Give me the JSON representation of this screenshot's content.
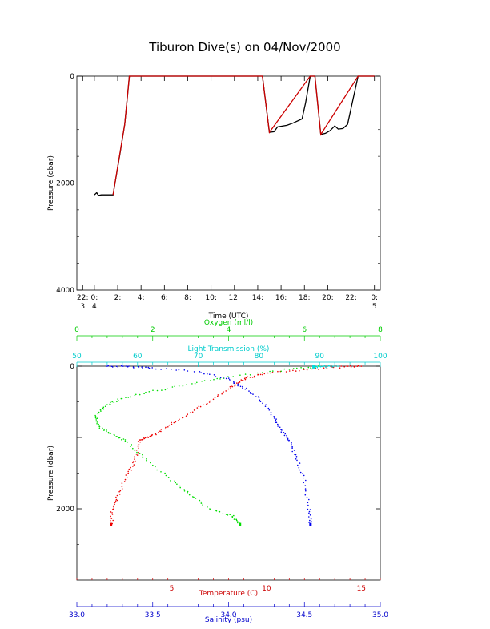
{
  "title": "Tiburon Dive(s) on 04/Nov/2000",
  "chart_data": [
    {
      "type": "line",
      "ylabel": "Pressure (dbar)",
      "xlabel": "Time (UTC)",
      "ylim": [
        4000,
        0
      ],
      "xlim": [
        -1.5,
        24.5
      ],
      "x_unit": "hours from 00:00 UTC on day 4 (negative = day 3)",
      "yticks": [
        0,
        2000,
        4000
      ],
      "xticks": [
        {
          "x": -1.0,
          "l1": "22:",
          "l2": "3"
        },
        {
          "x": 0.0,
          "l1": "0:",
          "l2": "4"
        },
        {
          "x": 2.0,
          "l1": "2:",
          "l2": ""
        },
        {
          "x": 4.0,
          "l1": "4:",
          "l2": ""
        },
        {
          "x": 6.0,
          "l1": "6:",
          "l2": ""
        },
        {
          "x": 8.0,
          "l1": "8:",
          "l2": ""
        },
        {
          "x": 10.0,
          "l1": "10:",
          "l2": ""
        },
        {
          "x": 12.0,
          "l1": "12:",
          "l2": ""
        },
        {
          "x": 14.0,
          "l1": "14:",
          "l2": ""
        },
        {
          "x": 16.0,
          "l1": "16:",
          "l2": ""
        },
        {
          "x": 18.0,
          "l1": "18:",
          "l2": ""
        },
        {
          "x": 20.0,
          "l1": "20:",
          "l2": ""
        },
        {
          "x": 22.0,
          "l1": "22:",
          "l2": ""
        },
        {
          "x": 24.0,
          "l1": "0:",
          "l2": "5"
        }
      ],
      "series": [
        {
          "color": "#000000",
          "points": [
            [
              0.0,
              2220
            ],
            [
              0.2,
              2180
            ],
            [
              0.35,
              2230
            ],
            [
              0.6,
              2220
            ],
            [
              1.0,
              2220
            ],
            [
              1.6,
              2220
            ],
            [
              2.2,
              1450
            ],
            [
              2.6,
              900
            ],
            [
              3.0,
              0
            ],
            [
              14.4,
              0
            ],
            [
              15.0,
              1050
            ],
            [
              15.4,
              1040
            ],
            [
              15.7,
              950
            ],
            [
              16.5,
              920
            ],
            [
              17.0,
              880
            ],
            [
              17.8,
              800
            ],
            [
              18.1,
              500
            ],
            [
              18.5,
              0
            ],
            [
              18.9,
              0
            ],
            [
              19.4,
              1090
            ],
            [
              19.8,
              1070
            ],
            [
              20.2,
              1020
            ],
            [
              20.6,
              930
            ],
            [
              20.9,
              990
            ],
            [
              21.3,
              980
            ],
            [
              21.7,
              900
            ],
            [
              22.1,
              500
            ],
            [
              22.6,
              0
            ],
            [
              24.0,
              0
            ]
          ]
        },
        {
          "color": "#cc0000",
          "points": [
            [
              1.6,
              2220
            ],
            [
              2.6,
              900
            ],
            [
              3.0,
              0
            ],
            [
              14.4,
              0
            ],
            [
              15.0,
              1050
            ],
            [
              18.5,
              0
            ],
            [
              18.9,
              0
            ],
            [
              19.4,
              1090
            ],
            [
              22.6,
              0
            ],
            [
              24.0,
              0
            ]
          ]
        }
      ]
    },
    {
      "type": "scatter",
      "ylabel": "Pressure (dbar)",
      "ylim": [
        3000,
        0
      ],
      "yticks": [
        0,
        1000,
        2000
      ],
      "ytick_labels": [
        "0",
        "",
        "2000"
      ],
      "axes": [
        {
          "name": "Oxygen (ml/l)",
          "position": "top",
          "color": "#00cc00",
          "range": [
            0,
            8
          ],
          "ticks": [
            0,
            2,
            4,
            6,
            8
          ]
        },
        {
          "name": "Light Transmission (%)",
          "position": "top2",
          "color": "#00cccc",
          "range": [
            50,
            100
          ],
          "ticks": [
            50,
            60,
            70,
            80,
            90,
            100
          ]
        },
        {
          "name": "Temperature (C)",
          "position": "bottom",
          "color": "#cc0000",
          "range": [
            0,
            16
          ],
          "ticks": [
            5,
            10,
            15
          ]
        },
        {
          "name": "Salinity (psu)",
          "position": "bottom2",
          "color": "#0000cc",
          "range": [
            33.0,
            35.0
          ],
          "ticks": [
            33.0,
            33.5,
            34.0,
            34.5,
            35.0
          ]
        }
      ],
      "series": [
        {
          "variable": "Temperature (C)",
          "axis": 2,
          "color": "#ee0000",
          "points": [
            [
              15.0,
              0
            ],
            [
              14.0,
              10
            ],
            [
              12.0,
              50
            ],
            [
              10.0,
              100
            ],
            [
              9.0,
              160
            ],
            [
              8.5,
              230
            ],
            [
              8.0,
              330
            ],
            [
              7.0,
              500
            ],
            [
              6.0,
              650
            ],
            [
              5.0,
              800
            ],
            [
              4.2,
              950
            ],
            [
              3.7,
              1000
            ],
            [
              3.3,
              1050
            ],
            [
              3.1,
              1300
            ],
            [
              2.7,
              1500
            ],
            [
              2.2,
              1800
            ],
            [
              1.9,
              2000
            ],
            [
              1.8,
              2220
            ]
          ]
        },
        {
          "variable": "Salinity (psu)",
          "axis": 3,
          "color": "#0000ee",
          "points": [
            [
              33.2,
              0
            ],
            [
              33.35,
              10
            ],
            [
              33.5,
              25
            ],
            [
              33.8,
              80
            ],
            [
              34.0,
              180
            ],
            [
              34.1,
              300
            ],
            [
              34.2,
              450
            ],
            [
              34.3,
              700
            ],
            [
              34.35,
              900
            ],
            [
              34.4,
              1050
            ],
            [
              34.45,
              1300
            ],
            [
              34.5,
              1600
            ],
            [
              34.53,
              2000
            ],
            [
              34.54,
              2220
            ]
          ]
        },
        {
          "variable": "Oxygen (ml/l)",
          "axis": 0,
          "color": "#00dd00",
          "points": [
            [
              6.5,
              0
            ],
            [
              5.5,
              50
            ],
            [
              4.0,
              150
            ],
            [
              3.0,
              250
            ],
            [
              2.0,
              350
            ],
            [
              1.2,
              450
            ],
            [
              0.8,
              550
            ],
            [
              0.5,
              700
            ],
            [
              0.6,
              850
            ],
            [
              0.9,
              950
            ],
            [
              1.3,
              1050
            ],
            [
              1.8,
              1300
            ],
            [
              2.5,
              1600
            ],
            [
              3.0,
              1800
            ],
            [
              3.5,
              2000
            ],
            [
              4.1,
              2100
            ],
            [
              4.3,
              2220
            ]
          ]
        },
        {
          "variable": "Light Transmission (%)",
          "axis": 1,
          "color": "#00dddd",
          "points": [
            [
              93,
              0
            ],
            [
              91,
              5
            ],
            [
              89,
              10
            ]
          ]
        }
      ]
    }
  ]
}
